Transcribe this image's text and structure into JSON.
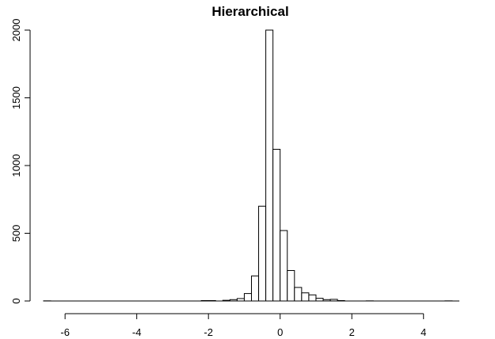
{
  "chart_data": {
    "type": "bar",
    "title": "Hierarchical",
    "xlabel": "",
    "ylabel": "",
    "xlim": [
      -6.6,
      5.0
    ],
    "ylim": [
      0,
      2000
    ],
    "x_ticks": [
      -6,
      -4,
      -2,
      0,
      2,
      4
    ],
    "x_tick_labels": [
      "-6",
      "-4",
      "-2",
      "0",
      "2",
      "4"
    ],
    "y_ticks": [
      0,
      500,
      1000,
      1500,
      2000
    ],
    "y_tick_labels": [
      "0",
      "500",
      "1000",
      "1500",
      "2000"
    ],
    "bin_width": 0.2,
    "bins": [
      {
        "start": -6.6,
        "end": -6.4,
        "count": 1
      },
      {
        "start": -2.2,
        "end": -2.0,
        "count": 3
      },
      {
        "start": -2.0,
        "end": -1.8,
        "count": 3
      },
      {
        "start": -1.6,
        "end": -1.4,
        "count": 5
      },
      {
        "start": -1.4,
        "end": -1.2,
        "count": 10
      },
      {
        "start": -1.2,
        "end": -1.0,
        "count": 18
      },
      {
        "start": -1.0,
        "end": -0.8,
        "count": 55
      },
      {
        "start": -0.8,
        "end": -0.6,
        "count": 185
      },
      {
        "start": -0.6,
        "end": -0.4,
        "count": 700
      },
      {
        "start": -0.4,
        "end": -0.2,
        "count": 2000
      },
      {
        "start": -0.2,
        "end": 0.0,
        "count": 1120
      },
      {
        "start": 0.0,
        "end": 0.2,
        "count": 520
      },
      {
        "start": 0.2,
        "end": 0.4,
        "count": 225
      },
      {
        "start": 0.4,
        "end": 0.6,
        "count": 100
      },
      {
        "start": 0.6,
        "end": 0.8,
        "count": 60
      },
      {
        "start": 0.8,
        "end": 1.0,
        "count": 45
      },
      {
        "start": 1.0,
        "end": 1.2,
        "count": 20
      },
      {
        "start": 1.2,
        "end": 1.4,
        "count": 10
      },
      {
        "start": 1.4,
        "end": 1.6,
        "count": 12
      },
      {
        "start": 1.6,
        "end": 1.8,
        "count": 3
      },
      {
        "start": 2.4,
        "end": 2.6,
        "count": 1
      },
      {
        "start": 4.6,
        "end": 4.8,
        "count": 1
      }
    ],
    "grid": false,
    "legend": "none"
  }
}
